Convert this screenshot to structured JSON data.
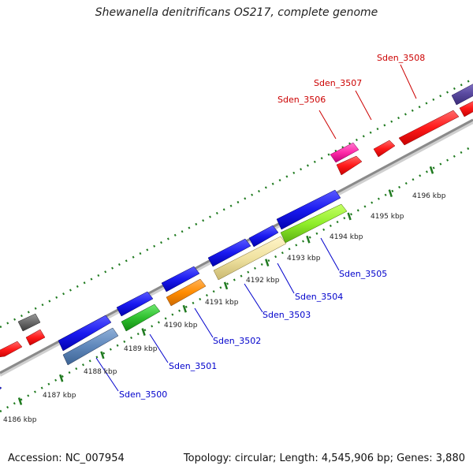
{
  "title": "Shewanella denitrificans OS217, complete genome",
  "footer": {
    "accession": "Accession: NC_007954",
    "summary": "Topology: circular; Length: 4,545,906 bp; Genes: 3,880"
  },
  "colors": {
    "backbone": "#9a9a9a",
    "ticks": "#1f7a1f",
    "forward_label": "#cc0000",
    "reverse_label": "#0000cc"
  },
  "scale_ticks": [
    {
      "label": "4186 kbp",
      "pos_kbp": 4186
    },
    {
      "label": "4187 kbp",
      "pos_kbp": 4187
    },
    {
      "label": "4188 kbp",
      "pos_kbp": 4188
    },
    {
      "label": "4189 kbp",
      "pos_kbp": 4189
    },
    {
      "label": "4190 kbp",
      "pos_kbp": 4190
    },
    {
      "label": "4191 kbp",
      "pos_kbp": 4191
    },
    {
      "label": "4192 kbp",
      "pos_kbp": 4192
    },
    {
      "label": "4193 kbp",
      "pos_kbp": 4193
    },
    {
      "label": "4194 kbp",
      "pos_kbp": 4194
    },
    {
      "label": "4195 kbp",
      "pos_kbp": 4195
    },
    {
      "label": "4196 kbp",
      "pos_kbp": 4196
    }
  ],
  "gene_labels_forward": [
    {
      "text": "Sden_3506"
    },
    {
      "text": "Sden_3507"
    },
    {
      "text": "Sden_3508"
    }
  ],
  "gene_labels_reverse": [
    {
      "text": "Sden_3500"
    },
    {
      "text": "Sden_3501"
    },
    {
      "text": "Sden_3502"
    },
    {
      "text": "Sden_3503"
    },
    {
      "text": "Sden_3504"
    },
    {
      "text": "Sden_3505"
    }
  ]
}
